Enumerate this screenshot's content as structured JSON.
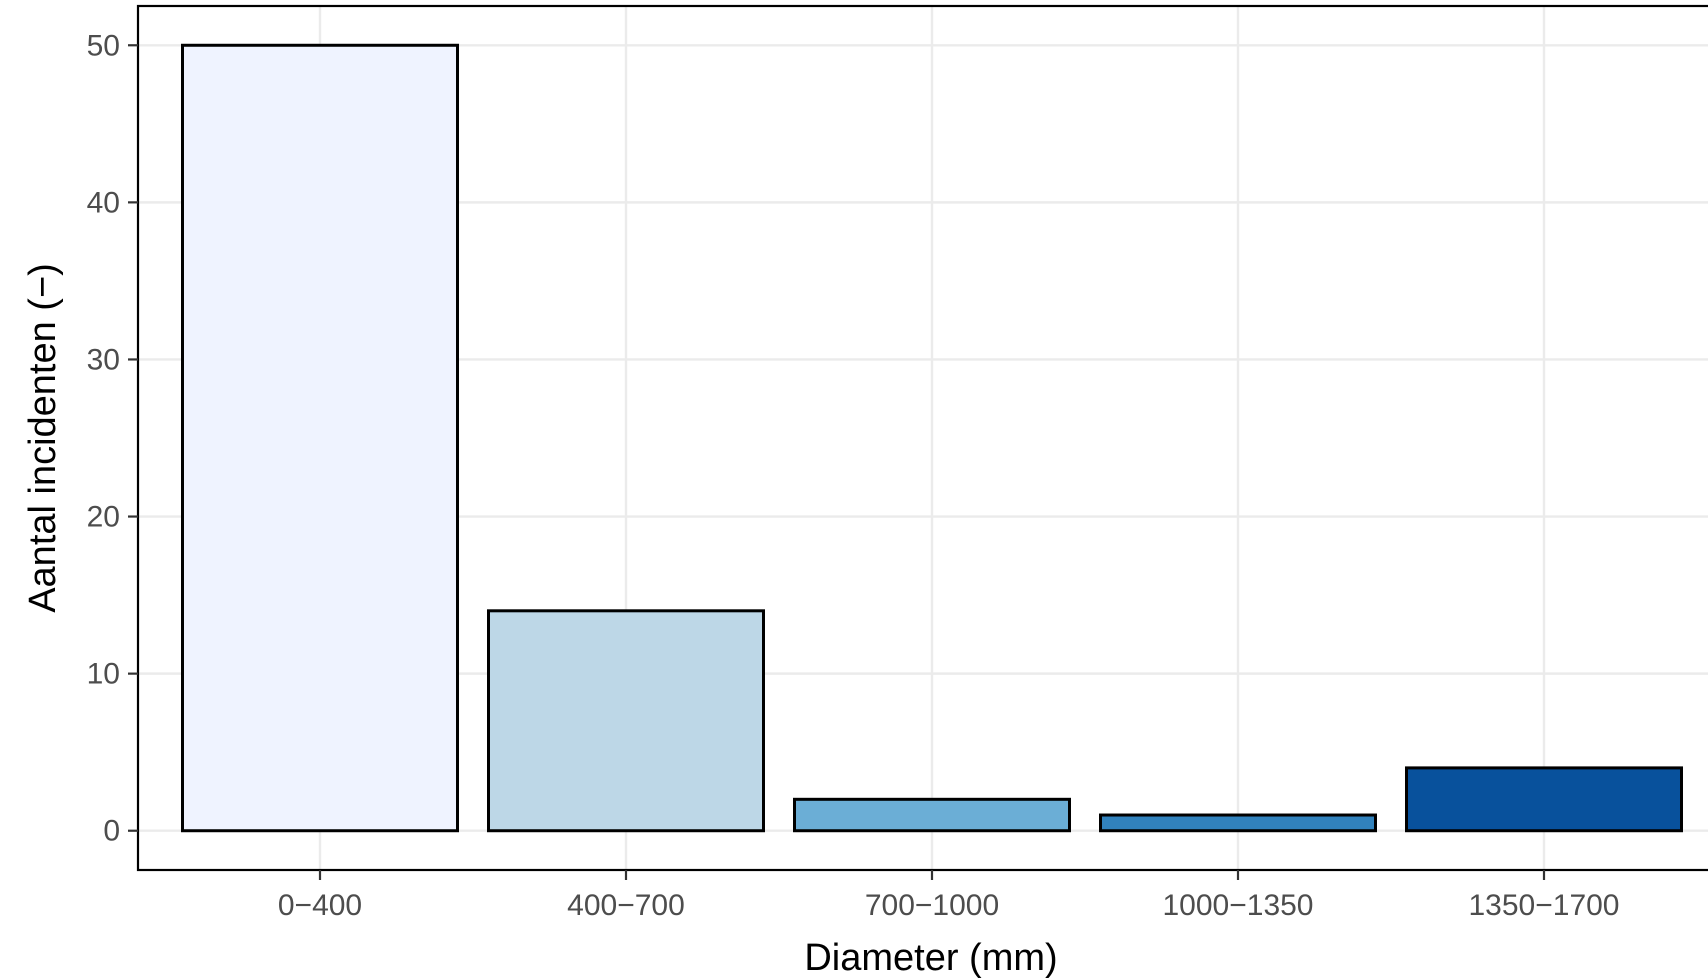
{
  "chart_data": {
    "type": "bar",
    "categories": [
      "0−400",
      "400−700",
      "700−1000",
      "1000−1350",
      "1350−1700"
    ],
    "values": [
      50,
      14,
      2,
      1,
      4
    ],
    "colors": [
      "#eff3ff",
      "#bdd7e7",
      "#6baed6",
      "#3182bd",
      "#08519c"
    ],
    "xlabel": "Diameter (mm)",
    "ylabel": "Aantal incidenten (−)",
    "ylim": [
      -2.5,
      52.5
    ],
    "yticks": [
      "0",
      "10",
      "20",
      "30",
      "40",
      "50"
    ],
    "grid": true,
    "legend": "none"
  }
}
